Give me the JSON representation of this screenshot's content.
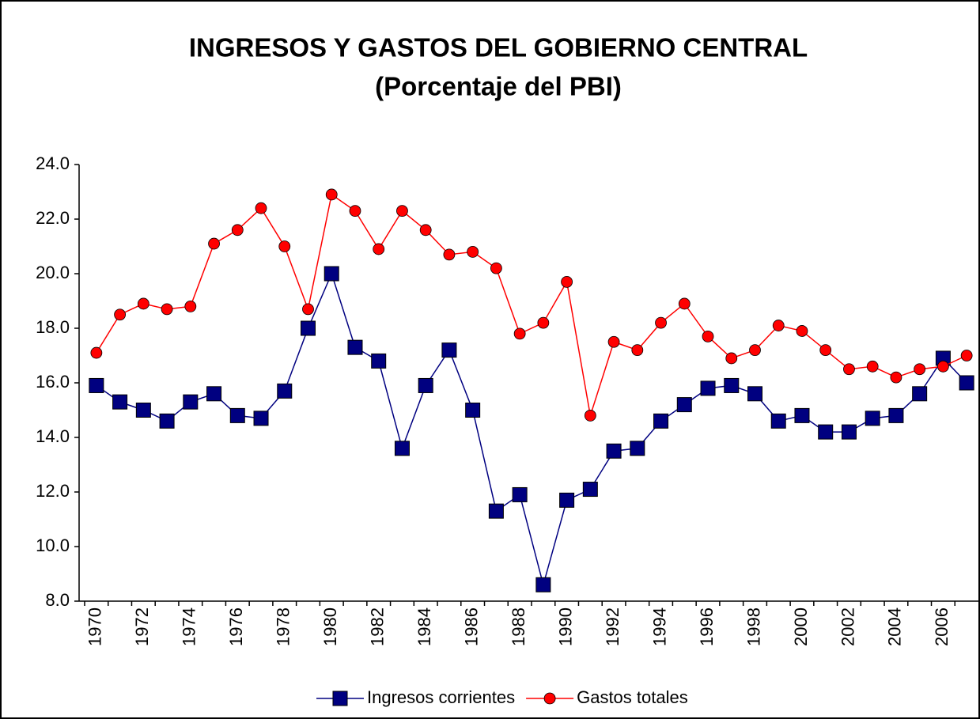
{
  "chart_data": {
    "type": "line",
    "title": "INGRESOS Y GASTOS DEL GOBIERNO CENTRAL",
    "subtitle": "(Porcentaje del PBI)",
    "categories": [
      "1970",
      null,
      "1972",
      null,
      "1974",
      null,
      "1976",
      null,
      "1978",
      null,
      "1980",
      null,
      "1982",
      null,
      "1984",
      null,
      "1986",
      null,
      "1988",
      null,
      "1990",
      null,
      "1992",
      null,
      "1994",
      null,
      "1996",
      null,
      "1998",
      null,
      "2000",
      null,
      "2002",
      null,
      "2004",
      null,
      "2006",
      null
    ],
    "series": [
      {
        "name": "Ingresos corrientes",
        "color": "#000080",
        "marker": "square",
        "values": [
          15.9,
          15.3,
          15.0,
          14.6,
          15.3,
          15.6,
          14.8,
          14.7,
          15.7,
          18.0,
          20.0,
          17.3,
          16.8,
          13.6,
          15.9,
          17.2,
          15.0,
          11.3,
          11.9,
          8.6,
          11.7,
          12.1,
          13.5,
          13.6,
          14.6,
          15.2,
          15.8,
          15.9,
          15.6,
          14.6,
          14.8,
          14.2,
          14.2,
          14.7,
          14.8,
          15.6,
          16.9,
          16.0
        ]
      },
      {
        "name": "Gastos totales",
        "color": "#ff0000",
        "marker": "circle",
        "values": [
          17.1,
          18.5,
          18.9,
          18.7,
          18.8,
          21.1,
          21.6,
          22.4,
          21.0,
          18.7,
          22.9,
          22.3,
          20.9,
          22.3,
          21.6,
          20.7,
          20.8,
          20.2,
          17.8,
          18.2,
          19.7,
          14.8,
          17.5,
          17.2,
          18.2,
          18.9,
          17.7,
          16.9,
          17.2,
          18.1,
          17.9,
          17.2,
          16.5,
          16.6,
          16.2,
          16.5,
          16.6,
          17.0
        ]
      }
    ],
    "ylim": [
      8,
      24
    ],
    "yticks": [
      {
        "value": 8,
        "label": "8.0"
      },
      {
        "value": 10,
        "label": "10.0"
      },
      {
        "value": 12,
        "label": "12.0"
      },
      {
        "value": 14,
        "label": "14.0"
      },
      {
        "value": 16,
        "label": "16.0"
      },
      {
        "value": 18,
        "label": "18.0"
      },
      {
        "value": 20,
        "label": "20.0"
      },
      {
        "value": 22,
        "label": "22.0"
      },
      {
        "value": 24,
        "label": "24.0"
      }
    ],
    "grid": false,
    "legend": "bottom"
  }
}
